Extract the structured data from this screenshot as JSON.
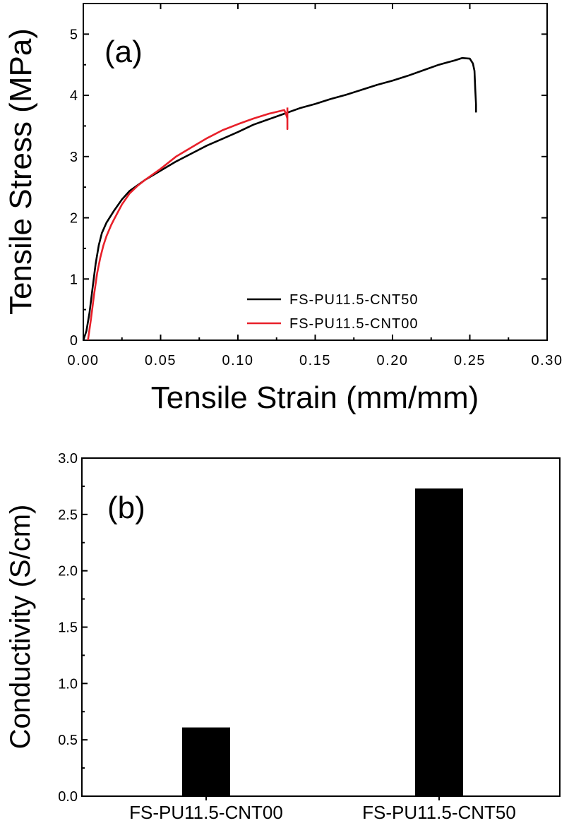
{
  "chart_data": [
    {
      "panel": "(a)",
      "type": "line",
      "xlabel": "Tensile Strain (mm/mm)",
      "ylabel": "Tensile Stress (MPa)",
      "xlim": [
        0,
        0.3
      ],
      "ylim": [
        0,
        5.5
      ],
      "xticks": [
        "0.00",
        "0.05",
        "0.10",
        "0.15",
        "0.20",
        "0.25",
        "0.30"
      ],
      "yticks": [
        "0",
        "1",
        "2",
        "3",
        "4",
        "5"
      ],
      "legend_position": "bottom-right",
      "series": [
        {
          "name": "FS-PU11.5-CNT50",
          "color": "#000000",
          "x": [
            0.0,
            0.002,
            0.004,
            0.006,
            0.008,
            0.01,
            0.012,
            0.015,
            0.02,
            0.025,
            0.03,
            0.04,
            0.05,
            0.06,
            0.07,
            0.08,
            0.09,
            0.1,
            0.11,
            0.12,
            0.13,
            0.14,
            0.15,
            0.16,
            0.17,
            0.18,
            0.19,
            0.2,
            0.21,
            0.22,
            0.23,
            0.24,
            0.245,
            0.25,
            0.252,
            0.253,
            0.2535,
            0.254,
            0.254
          ],
          "y": [
            0.0,
            0.15,
            0.45,
            0.85,
            1.25,
            1.55,
            1.75,
            1.92,
            2.12,
            2.3,
            2.44,
            2.62,
            2.77,
            2.92,
            3.05,
            3.18,
            3.29,
            3.4,
            3.52,
            3.61,
            3.7,
            3.79,
            3.86,
            3.94,
            4.01,
            4.09,
            4.17,
            4.24,
            4.32,
            4.41,
            4.5,
            4.57,
            4.61,
            4.6,
            4.52,
            4.4,
            4.1,
            3.85,
            3.72
          ]
        },
        {
          "name": "FS-PU11.5-CNT00",
          "color": "#e8202a",
          "x": [
            0.003,
            0.005,
            0.007,
            0.009,
            0.011,
            0.013,
            0.015,
            0.018,
            0.02,
            0.025,
            0.03,
            0.035,
            0.04,
            0.05,
            0.06,
            0.07,
            0.08,
            0.09,
            0.1,
            0.11,
            0.12,
            0.125,
            0.13,
            0.131,
            0.132,
            0.132,
            0.132
          ],
          "y": [
            0.0,
            0.35,
            0.75,
            1.1,
            1.35,
            1.55,
            1.7,
            1.88,
            1.98,
            2.22,
            2.4,
            2.52,
            2.62,
            2.8,
            3.0,
            3.15,
            3.3,
            3.43,
            3.53,
            3.62,
            3.7,
            3.73,
            3.76,
            3.7,
            3.62,
            3.45,
            3.8
          ]
        }
      ]
    },
    {
      "panel": "(b)",
      "type": "bar",
      "xlabel": "",
      "ylabel": "Conductivity (S/cm)",
      "ylim": [
        0,
        3.0
      ],
      "yticks": [
        "0.0",
        "0.5",
        "1.0",
        "1.5",
        "2.0",
        "2.5",
        "3.0"
      ],
      "categories": [
        "FS-PU11.5-CNT00",
        "FS-PU11.5-CNT50"
      ],
      "values": [
        0.61,
        2.73
      ],
      "bar_color": "#000000"
    }
  ]
}
